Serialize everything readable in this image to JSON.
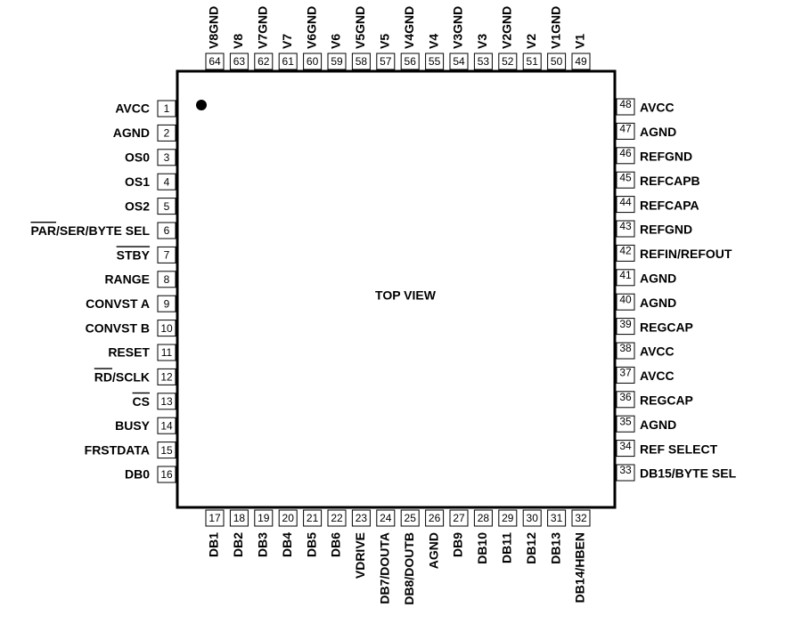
{
  "center_label": "TOP VIEW",
  "pins": [
    {
      "number": 1,
      "name": "AVCC"
    },
    {
      "number": 2,
      "name": "AGND"
    },
    {
      "number": 3,
      "name": "OS0"
    },
    {
      "number": 4,
      "name": "OS1"
    },
    {
      "number": 5,
      "name": "OS2"
    },
    {
      "number": 6,
      "name": [
        {
          "text": "PAR",
          "overline": true
        },
        {
          "text": "/SER/BYTE SEL"
        }
      ]
    },
    {
      "number": 7,
      "name": [
        {
          "text": "STBY",
          "overline": true
        }
      ]
    },
    {
      "number": 8,
      "name": "RANGE"
    },
    {
      "number": 9,
      "name": "CONVST A"
    },
    {
      "number": 10,
      "name": "CONVST B"
    },
    {
      "number": 11,
      "name": "RESET"
    },
    {
      "number": 12,
      "name": [
        {
          "text": "RD",
          "overline": true
        },
        {
          "text": "/SCLK"
        }
      ]
    },
    {
      "number": 13,
      "name": [
        {
          "text": "CS",
          "overline": true
        }
      ]
    },
    {
      "number": 14,
      "name": "BUSY"
    },
    {
      "number": 15,
      "name": "FRSTDATA"
    },
    {
      "number": 16,
      "name": "DB0"
    },
    {
      "number": 17,
      "name": "DB1"
    },
    {
      "number": 18,
      "name": "DB2"
    },
    {
      "number": 19,
      "name": "DB3"
    },
    {
      "number": 20,
      "name": "DB4"
    },
    {
      "number": 21,
      "name": "DB5"
    },
    {
      "number": 22,
      "name": "DB6"
    },
    {
      "number": 23,
      "name": "VDRIVE"
    },
    {
      "number": 24,
      "name": "DB7/DOUTA"
    },
    {
      "number": 25,
      "name": "DB8/DOUTB"
    },
    {
      "number": 26,
      "name": "AGND"
    },
    {
      "number": 27,
      "name": "DB9"
    },
    {
      "number": 28,
      "name": "DB10"
    },
    {
      "number": 29,
      "name": "DB11"
    },
    {
      "number": 30,
      "name": "DB12"
    },
    {
      "number": 31,
      "name": "DB13"
    },
    {
      "number": 32,
      "name": "DB14/HBEN"
    },
    {
      "number": 33,
      "name": "DB15/BYTE SEL"
    },
    {
      "number": 34,
      "name": "REF SELECT"
    },
    {
      "number": 35,
      "name": "AGND"
    },
    {
      "number": 36,
      "name": "REGCAP"
    },
    {
      "number": 37,
      "name": "AVCC"
    },
    {
      "number": 38,
      "name": "AVCC"
    },
    {
      "number": 39,
      "name": "REGCAP"
    },
    {
      "number": 40,
      "name": "AGND"
    },
    {
      "number": 41,
      "name": "AGND"
    },
    {
      "number": 42,
      "name": "REFIN/REFOUT"
    },
    {
      "number": 43,
      "name": "REFGND"
    },
    {
      "number": 44,
      "name": "REFCAPA"
    },
    {
      "number": 45,
      "name": "REFCAPB"
    },
    {
      "number": 46,
      "name": "REFGND"
    },
    {
      "number": 47,
      "name": "AGND"
    },
    {
      "number": 48,
      "name": "AVCC"
    },
    {
      "number": 49,
      "name": "V1"
    },
    {
      "number": 50,
      "name": "V1GND"
    },
    {
      "number": 51,
      "name": "V2"
    },
    {
      "number": 52,
      "name": "V2GND"
    },
    {
      "number": 53,
      "name": "V3"
    },
    {
      "number": 54,
      "name": "V3GND"
    },
    {
      "number": 55,
      "name": "V4"
    },
    {
      "number": 56,
      "name": "V4GND"
    },
    {
      "number": 57,
      "name": "V5"
    },
    {
      "number": 58,
      "name": "V5GND"
    },
    {
      "number": 59,
      "name": "V6"
    },
    {
      "number": 60,
      "name": "V6GND"
    },
    {
      "number": 61,
      "name": "V7"
    },
    {
      "number": 62,
      "name": "V7GND"
    },
    {
      "number": 63,
      "name": "V8"
    },
    {
      "number": 64,
      "name": "V8GND"
    }
  ]
}
